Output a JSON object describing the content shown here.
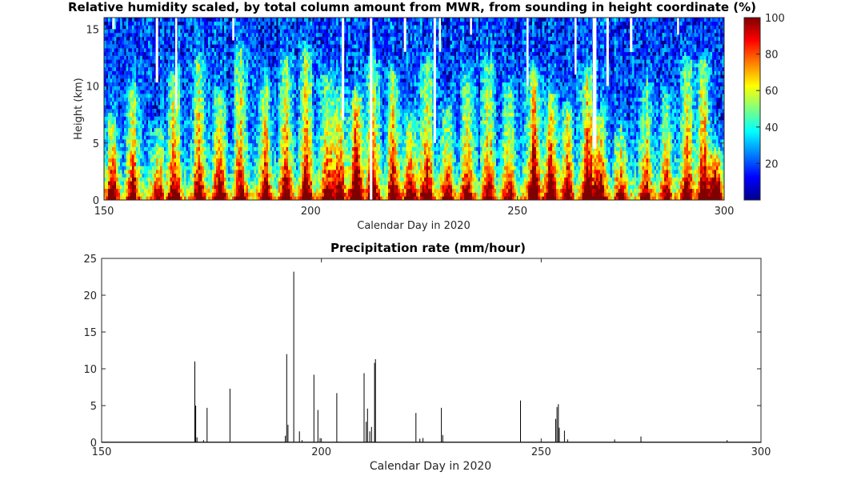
{
  "chart_data": [
    {
      "type": "heatmap",
      "title": "Relative humidity scaled, by total column amount from MWR, from sounding in height coordinate  (%)",
      "xlabel": "Calendar Day in 2020",
      "ylabel": "Height (km)",
      "xlim": [
        150,
        300
      ],
      "ylim": [
        0,
        16
      ],
      "x_ticks": [
        150,
        200,
        250,
        300
      ],
      "y_ticks": [
        0,
        5,
        10,
        15
      ],
      "colorbar": {
        "range": [
          0,
          100
        ],
        "ticks": [
          20,
          40,
          60,
          80,
          100
        ],
        "colormap": "jet"
      },
      "moist_episodes": [
        {
          "day": 152,
          "top": 7,
          "strength": 0.75
        },
        {
          "day": 157,
          "top": 10,
          "strength": 0.7
        },
        {
          "day": 163,
          "top": 6,
          "strength": 0.65
        },
        {
          "day": 167,
          "top": 11,
          "strength": 0.8
        },
        {
          "day": 173,
          "top": 12,
          "strength": 0.7
        },
        {
          "day": 178,
          "top": 9,
          "strength": 0.75
        },
        {
          "day": 183,
          "top": 13,
          "strength": 0.7
        },
        {
          "day": 189,
          "top": 10,
          "strength": 0.8
        },
        {
          "day": 194,
          "top": 12,
          "strength": 0.75
        },
        {
          "day": 199,
          "top": 13,
          "strength": 0.8
        },
        {
          "day": 204,
          "top": 11,
          "strength": 0.75
        },
        {
          "day": 207,
          "top": 9,
          "strength": 0.7
        },
        {
          "day": 211,
          "top": 9,
          "strength": 1.0
        },
        {
          "day": 215,
          "top": 12,
          "strength": 0.85
        },
        {
          "day": 220,
          "top": 11,
          "strength": 0.75
        },
        {
          "day": 224,
          "top": 7,
          "strength": 0.7
        },
        {
          "day": 228,
          "top": 12,
          "strength": 0.8
        },
        {
          "day": 233,
          "top": 8,
          "strength": 0.7
        },
        {
          "day": 238,
          "top": 11,
          "strength": 0.75
        },
        {
          "day": 243,
          "top": 12,
          "strength": 0.7
        },
        {
          "day": 248,
          "top": 10,
          "strength": 0.65
        },
        {
          "day": 254,
          "top": 11,
          "strength": 1.0
        },
        {
          "day": 258,
          "top": 9,
          "strength": 0.85
        },
        {
          "day": 262,
          "top": 8,
          "strength": 0.75
        },
        {
          "day": 267,
          "top": 11,
          "strength": 0.9
        },
        {
          "day": 270,
          "top": 7,
          "strength": 0.75
        },
        {
          "day": 275,
          "top": 6,
          "strength": 0.65
        },
        {
          "day": 281,
          "top": 10,
          "strength": 0.65
        },
        {
          "day": 286,
          "top": 9,
          "strength": 0.65
        },
        {
          "day": 291,
          "top": 12,
          "strength": 0.8
        },
        {
          "day": 295,
          "top": 12,
          "strength": 0.85
        },
        {
          "day": 298,
          "top": 4,
          "strength": 0.95
        }
      ],
      "missing_data": [
        {
          "day": 152.0,
          "width": 0.6,
          "from_height": 15.0
        },
        {
          "day": 162.5,
          "width": 0.6,
          "from_height": 10.3
        },
        {
          "day": 167.2,
          "width": 0.5,
          "from_height": 8.0
        },
        {
          "day": 181.0,
          "width": 0.5,
          "from_height": 14.0
        },
        {
          "day": 207.5,
          "width": 0.6,
          "from_height": 7.0
        },
        {
          "day": 214.3,
          "width": 0.6,
          "from_height": 0.0
        },
        {
          "day": 222.5,
          "width": 0.6,
          "from_height": 13.0
        },
        {
          "day": 229.7,
          "width": 0.6,
          "from_height": 5.0
        },
        {
          "day": 231.0,
          "width": 0.5,
          "from_height": 13.0
        },
        {
          "day": 238.5,
          "width": 0.5,
          "from_height": 14.5
        },
        {
          "day": 252.2,
          "width": 0.5,
          "from_height": 10.0
        },
        {
          "day": 263.8,
          "width": 0.5,
          "from_height": 11.0
        },
        {
          "day": 268.2,
          "width": 0.9,
          "from_height": 4.5
        },
        {
          "day": 271.5,
          "width": 0.6,
          "from_height": 10.0
        },
        {
          "day": 277.2,
          "width": 0.6,
          "from_height": 13.0
        },
        {
          "day": 288.6,
          "width": 0.5,
          "from_height": 14.5
        }
      ]
    },
    {
      "type": "line",
      "title": "Precipitation rate  (mm/hour)",
      "xlabel": "Calendar Day in 2020",
      "ylabel": "",
      "xlim": [
        150,
        300
      ],
      "ylim": [
        0,
        25
      ],
      "x_ticks": [
        150,
        200,
        250,
        300
      ],
      "y_ticks": [
        0,
        5,
        10,
        15,
        20,
        25
      ],
      "spikes": [
        {
          "x": 171.2,
          "y": 11.0
        },
        {
          "x": 171.4,
          "y": 5.0
        },
        {
          "x": 171.7,
          "y": 0.7
        },
        {
          "x": 173.2,
          "y": 0.3
        },
        {
          "x": 174.0,
          "y": 4.7
        },
        {
          "x": 179.2,
          "y": 7.3
        },
        {
          "x": 191.8,
          "y": 0.9
        },
        {
          "x": 192.1,
          "y": 12.0
        },
        {
          "x": 192.4,
          "y": 2.4
        },
        {
          "x": 193.7,
          "y": 23.2
        },
        {
          "x": 195.0,
          "y": 1.5
        },
        {
          "x": 195.6,
          "y": 0.3
        },
        {
          "x": 198.3,
          "y": 9.2
        },
        {
          "x": 199.2,
          "y": 4.4
        },
        {
          "x": 199.7,
          "y": 0.6
        },
        {
          "x": 203.5,
          "y": 6.7
        },
        {
          "x": 209.7,
          "y": 9.4
        },
        {
          "x": 210.2,
          "y": 2.8
        },
        {
          "x": 210.5,
          "y": 4.6
        },
        {
          "x": 211.0,
          "y": 1.5
        },
        {
          "x": 211.4,
          "y": 2.1
        },
        {
          "x": 212.1,
          "y": 10.8
        },
        {
          "x": 212.3,
          "y": 11.3
        },
        {
          "x": 221.5,
          "y": 4.0
        },
        {
          "x": 222.4,
          "y": 0.5
        },
        {
          "x": 223.1,
          "y": 0.6
        },
        {
          "x": 227.3,
          "y": 4.7
        },
        {
          "x": 227.6,
          "y": 1.0
        },
        {
          "x": 245.3,
          "y": 5.7
        },
        {
          "x": 253.3,
          "y": 3.2
        },
        {
          "x": 253.6,
          "y": 4.8
        },
        {
          "x": 253.9,
          "y": 5.2
        },
        {
          "x": 254.1,
          "y": 2.0
        },
        {
          "x": 255.3,
          "y": 1.6
        },
        {
          "x": 256.0,
          "y": 0.4
        },
        {
          "x": 266.7,
          "y": 0.4
        },
        {
          "x": 272.7,
          "y": 0.8
        },
        {
          "x": 292.3,
          "y": 0.3
        }
      ]
    }
  ]
}
